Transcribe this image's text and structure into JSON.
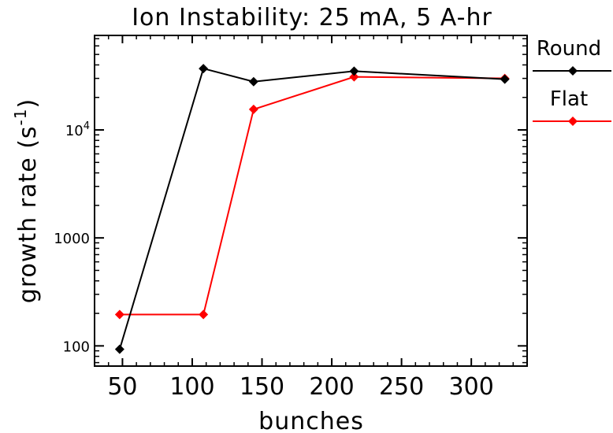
{
  "chart_data": {
    "type": "line",
    "title": "Ion Instability: 25 mA, 5 A-hr",
    "xlabel": "bunches",
    "ylabel": "growth rate (s",
    "ylabel_sup": "-1",
    "ylabel_close": ")",
    "xlim": [
      30,
      340
    ],
    "ylim": [
      65,
      75000
    ],
    "yscale": "log",
    "grid": false,
    "legend_position": "right-outside",
    "x_ticks": [
      50,
      100,
      150,
      200,
      250,
      300
    ],
    "x_tick_labels": [
      "50",
      "100",
      "150",
      "200",
      "250",
      "300"
    ],
    "y_major_ticks": [
      100,
      1000,
      10000
    ],
    "y_tick_labels": [
      "100",
      "1000",
      "10"
    ],
    "y_tick_sup": [
      "",
      "",
      "4"
    ],
    "series": [
      {
        "name": "Round",
        "color": "#000000",
        "x": [
          48,
          108,
          144,
          216,
          324
        ],
        "y": [
          93,
          37000,
          28000,
          35000,
          29500
        ]
      },
      {
        "name": "Flat",
        "color": "#ff0000",
        "x": [
          48,
          108,
          144,
          216,
          324
        ],
        "y": [
          195,
          195,
          15500,
          31000,
          30000
        ]
      }
    ]
  }
}
